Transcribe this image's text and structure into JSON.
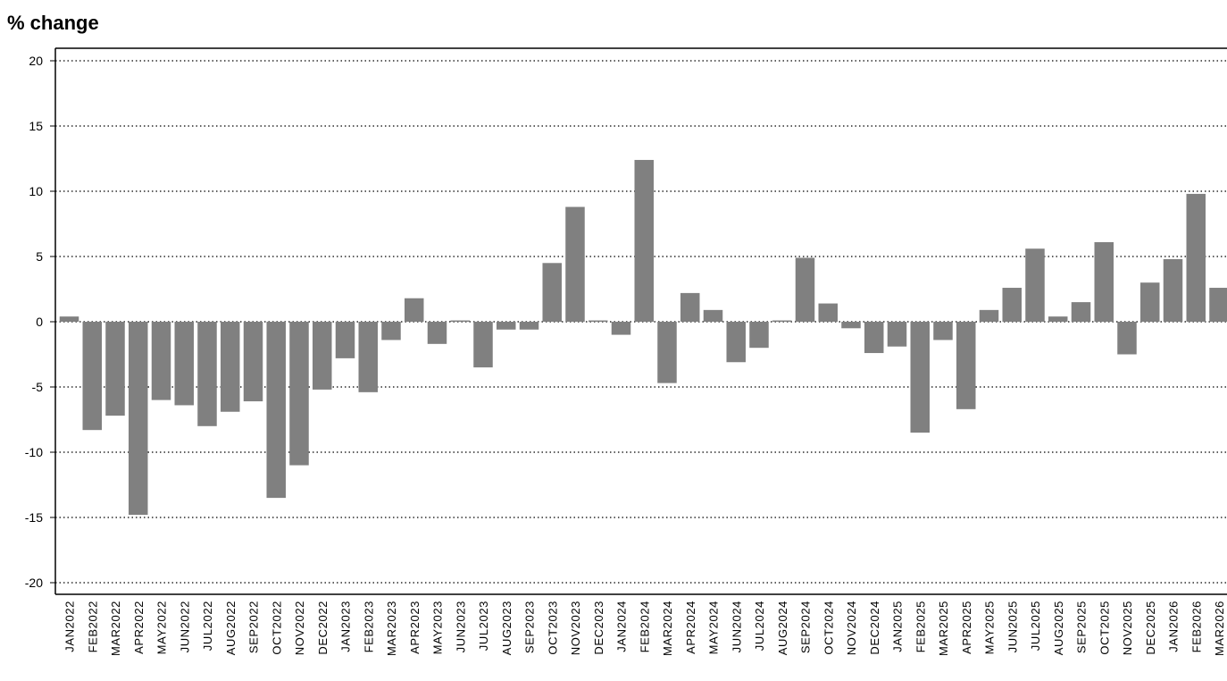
{
  "chart_data": {
    "type": "bar",
    "title": "% change",
    "xlabel": "",
    "ylabel": "",
    "ylim": [
      -20,
      20
    ],
    "yticks": [
      20,
      15,
      10,
      5,
      0,
      -5,
      -10,
      -15,
      -20
    ],
    "grid": "horizontal dotted",
    "bar_color": "#808080",
    "categories": [
      "JAN2022",
      "FEB2022",
      "MAR2022",
      "APR2022",
      "MAY2022",
      "JUN2022",
      "JUL2022",
      "AUG2022",
      "SEP2022",
      "OCT2022",
      "NOV2022",
      "DEC2022",
      "JAN2023",
      "FEB2023",
      "MAR2023",
      "APR2023",
      "MAY2023",
      "JUN2023",
      "JUL2023",
      "AUG2023",
      "SEP2023",
      "OCT2023",
      "NOV2023",
      "DEC2023",
      "JAN2024",
      "FEB2024",
      "MAR2024",
      "APR2024",
      "MAY2024",
      "JUN2024",
      "JUL2024",
      "AUG2024",
      "SEP2024",
      "OCT2024",
      "NOV2024",
      "DEC2024",
      "JAN2025",
      "FEB2025",
      "MAR2025",
      "APR2025",
      "MAY2025",
      "JUN2025",
      "JUL2025",
      "AUG2025",
      "SEP2025",
      "OCT2025",
      "NOV2025",
      "DEC2025",
      "JAN2026",
      "FEB2026",
      "MAR2026"
    ],
    "values": [
      0.4,
      -8.3,
      -7.2,
      -14.8,
      -6.0,
      -6.4,
      -8.0,
      -6.9,
      -6.1,
      -13.5,
      -11.0,
      -5.2,
      -2.8,
      -5.4,
      -1.4,
      1.8,
      -1.7,
      0.1,
      -3.5,
      -0.6,
      -0.6,
      4.5,
      8.8,
      0.1,
      -1.0,
      12.4,
      -4.7,
      2.2,
      0.9,
      -3.1,
      -2.0,
      0.1,
      4.9,
      1.4,
      -0.5,
      -2.4,
      -1.9,
      -8.5,
      -1.4,
      -6.7,
      0.9,
      2.6,
      5.6,
      0.4,
      1.5,
      6.1,
      -2.5,
      3.0,
      4.8,
      9.8,
      2.6
    ]
  }
}
